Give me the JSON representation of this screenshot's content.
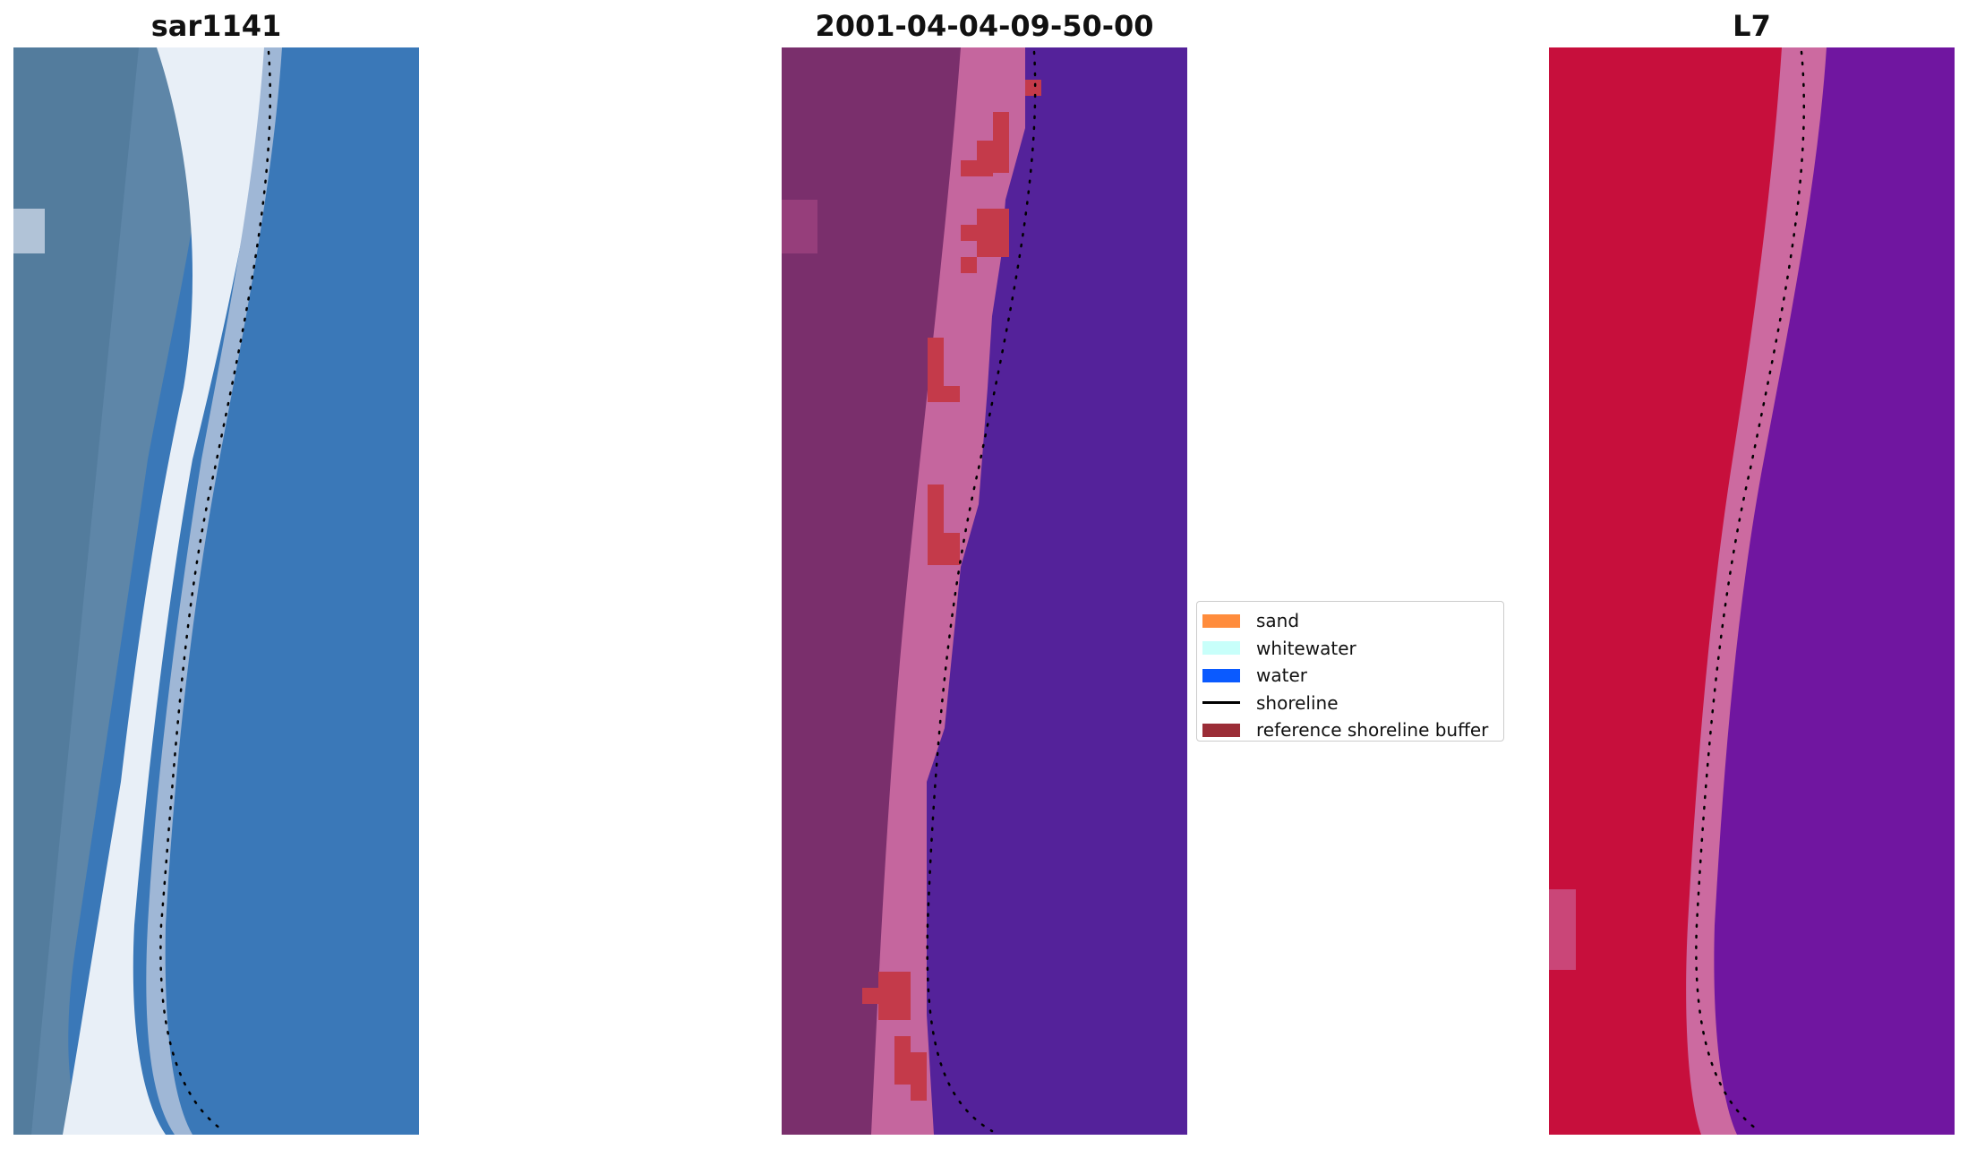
{
  "panels": [
    {
      "id": "p1",
      "title": "sar1141",
      "kind": "rgb"
    },
    {
      "id": "p2",
      "title": "2001-04-04-09-50-00",
      "kind": "classified"
    },
    {
      "id": "p3",
      "title": "L7",
      "kind": "false_color"
    }
  ],
  "legend": {
    "items": [
      {
        "label": "sand",
        "color": "#ff8c3c",
        "type": "patch"
      },
      {
        "label": "whitewater",
        "color": "#c8fffa",
        "type": "patch"
      },
      {
        "label": "water",
        "color": "#0a5aff",
        "type": "patch"
      },
      {
        "label": "shoreline",
        "color": "#000000",
        "type": "line"
      },
      {
        "label": "reference shoreline buffer",
        "color": "#9b2d37",
        "type": "patch"
      }
    ]
  },
  "colors": {
    "rgb_land": "#5e86a8",
    "rgb_surf": "#e8eff7",
    "rgb_water": "#3a78b8",
    "class_land": "#7a2f6c",
    "class_beach": "#c5669e",
    "class_water": "#54229a",
    "class_buffer": "#c43a4a",
    "fc_land": "#c70f3c",
    "fc_beach": "#cc6aa0",
    "fc_water": "#7016a0"
  }
}
